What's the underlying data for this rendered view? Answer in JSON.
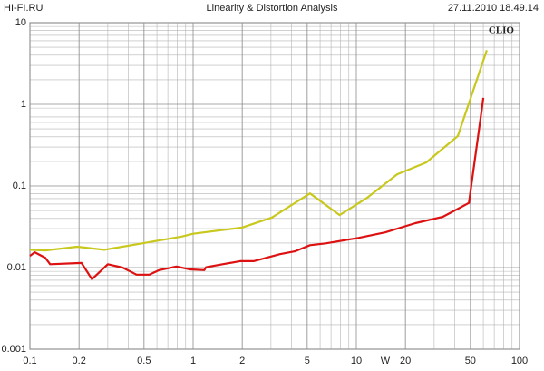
{
  "chart_data": {
    "type": "line",
    "site": "HI-FI.RU",
    "title": "Linearity & Distortion Analysis",
    "timestamp": "27.11.2010 18.49.14",
    "brand": "CLIO",
    "x_label": "W",
    "log_x": true,
    "log_y": true,
    "grid": true,
    "xlim": [
      0.1,
      100
    ],
    "ylim": [
      0.001,
      10
    ],
    "xticks": [
      0.1,
      0.2,
      0.5,
      1,
      2,
      5,
      10,
      20,
      50,
      100
    ],
    "yticks": [
      10,
      1,
      0.1,
      0.01,
      0.001
    ],
    "series": [
      {
        "color": "#c8c81e",
        "x": [
          0.1,
          0.124,
          0.195,
          0.285,
          0.5,
          0.85,
          1.0,
          2.0,
          3.04,
          5.2,
          7.9,
          11.7,
          17.8,
          26.8,
          41.9,
          63
        ],
        "values": [
          0.0165,
          0.0162,
          0.018,
          0.0165,
          0.02,
          0.024,
          0.026,
          0.031,
          0.041,
          0.081,
          0.044,
          0.072,
          0.139,
          0.194,
          0.409,
          4.6
        ]
      },
      {
        "color": "#dd1111",
        "x": [
          0.1,
          0.107,
          0.124,
          0.133,
          0.207,
          0.24,
          0.3,
          0.37,
          0.45,
          0.54,
          0.62,
          0.79,
          0.96,
          1.17,
          1.2,
          1.94,
          2.35,
          3.4,
          4.2,
          5.2,
          6.5,
          10.2,
          15,
          23,
          34,
          49,
          60
        ],
        "values": [
          0.0139,
          0.0154,
          0.0132,
          0.011,
          0.0114,
          0.0072,
          0.011,
          0.01,
          0.0082,
          0.0082,
          0.0093,
          0.0103,
          0.0095,
          0.0093,
          0.0101,
          0.012,
          0.012,
          0.0146,
          0.0158,
          0.0188,
          0.0198,
          0.023,
          0.027,
          0.035,
          0.042,
          0.062,
          1.2
        ]
      }
    ]
  }
}
